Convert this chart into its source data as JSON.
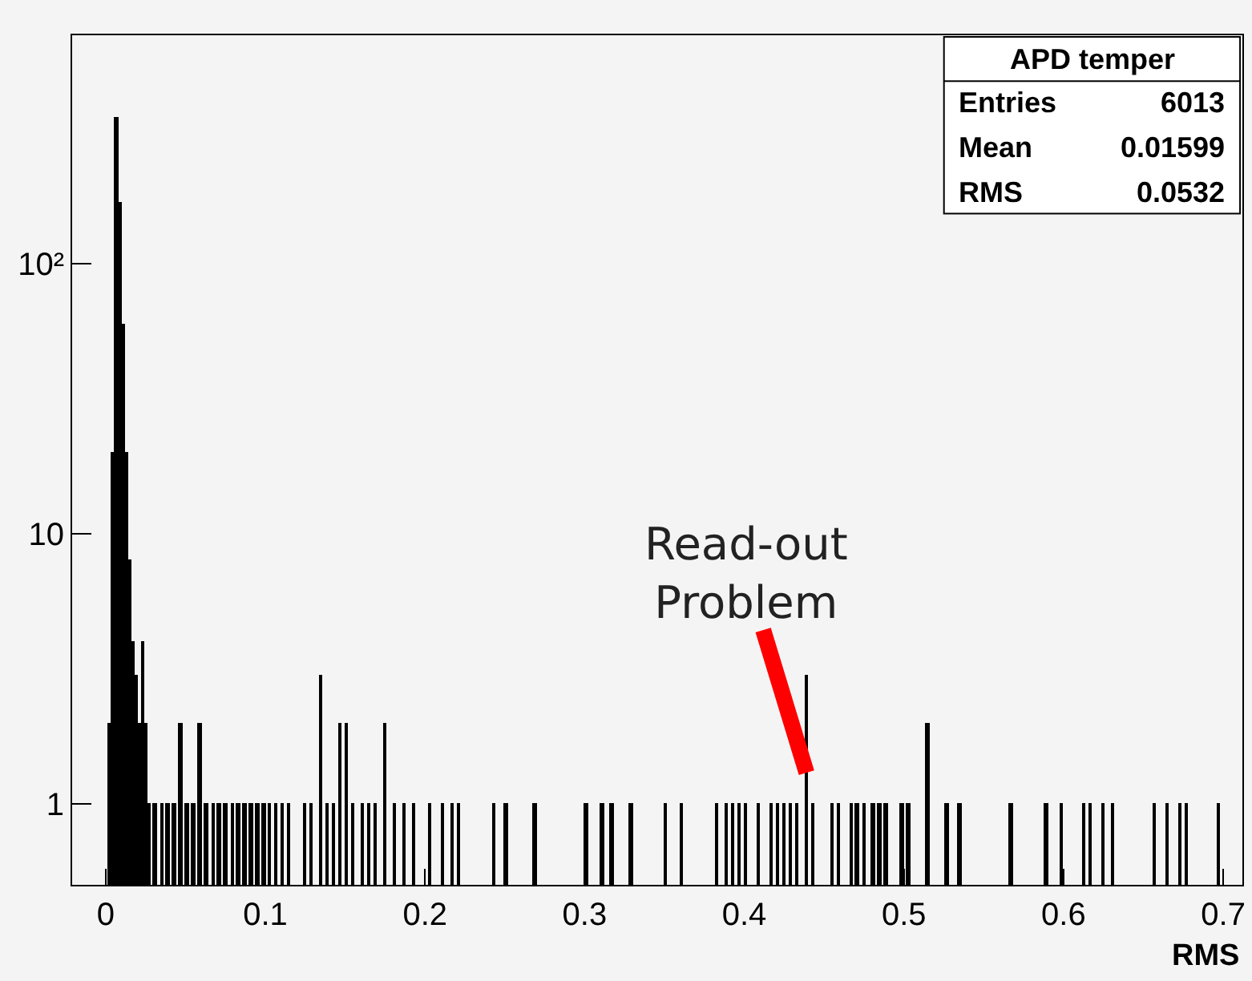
{
  "chart_data": {
    "type": "histogram",
    "xlabel": "RMS",
    "color": "#000000",
    "log": "y",
    "grid": false,
    "bins": [
      0.002,
      0.004,
      0.006,
      0.008,
      0.01,
      0.012,
      0.014,
      0.016,
      0.018,
      0.02,
      0.022,
      0.024,
      0.026,
      0.028,
      0.03,
      0.032,
      0.034,
      0.036,
      0.038,
      0.04,
      0.042,
      0.044,
      0.046,
      0.048,
      0.05,
      0.052,
      0.054,
      0.056,
      0.058,
      0.06,
      0.062,
      0.064,
      0.066,
      0.068,
      0.07,
      0.072,
      0.074,
      0.076,
      0.078,
      0.08,
      0.082,
      0.084,
      0.086,
      0.088,
      0.09,
      0.092,
      0.094,
      0.096,
      0.098,
      0.1,
      0.102,
      0.104,
      0.106,
      0.108,
      0.11,
      0.112,
      0.114,
      0.116,
      0.124,
      0.126,
      0.128,
      0.13,
      0.134,
      0.136,
      0.138,
      0.14,
      0.142,
      0.144,
      0.146,
      0.148,
      0.15,
      0.152,
      0.154,
      0.156,
      0.16,
      0.162,
      0.164,
      0.166,
      0.168,
      0.17,
      0.174,
      0.176,
      0.18,
      0.182,
      0.186,
      0.188,
      0.192,
      0.194,
      0.202,
      0.204,
      0.21,
      0.212,
      0.216,
      0.218,
      0.22,
      0.222,
      0.242,
      0.244,
      0.25,
      0.252,
      0.268,
      0.27,
      0.3,
      0.302,
      0.31,
      0.312,
      0.316,
      0.318,
      0.328,
      0.33,
      0.35,
      0.352,
      0.36,
      0.362,
      0.382,
      0.384,
      0.388,
      0.39,
      0.392,
      0.394,
      0.396,
      0.398,
      0.4,
      0.402,
      0.408,
      0.41,
      0.416,
      0.418,
      0.42,
      0.422,
      0.424,
      0.426,
      0.428,
      0.43,
      0.432,
      0.434,
      0.438,
      0.44,
      0.442,
      0.444,
      0.454,
      0.456,
      0.458,
      0.46,
      0.466,
      0.468,
      0.47,
      0.472,
      0.474,
      0.476,
      0.48,
      0.482,
      0.484,
      0.486,
      0.488,
      0.49,
      0.498,
      0.5,
      0.502,
      0.504,
      0.514,
      0.516,
      0.526,
      0.528,
      0.534,
      0.536,
      0.566,
      0.568,
      0.588,
      0.59,
      0.598,
      0.6,
      0.612,
      0.614,
      0.616,
      0.618,
      0.624,
      0.626,
      0.63,
      0.632,
      0.656,
      0.658,
      0.664,
      0.666,
      0.672,
      0.674,
      0.676,
      0.678,
      0.696,
      0.698
    ],
    "values": [
      2,
      20,
      350,
      170,
      60,
      20,
      8,
      4,
      3,
      2,
      4,
      2,
      1,
      null,
      1,
      null,
      1,
      null,
      1,
      null,
      1,
      null,
      2,
      null,
      1,
      null,
      1,
      null,
      2,
      null,
      1,
      null,
      1,
      null,
      1,
      null,
      1,
      null,
      1,
      null,
      1,
      null,
      1,
      null,
      1,
      null,
      1,
      null,
      1,
      null,
      1,
      null,
      1,
      null,
      1,
      null,
      1,
      null,
      1,
      null,
      1,
      null,
      3,
      null,
      1,
      null,
      1,
      null,
      2,
      null,
      2,
      null,
      1,
      null,
      1,
      null,
      1,
      null,
      1,
      null,
      2,
      null,
      1,
      null,
      1,
      null,
      1,
      null,
      1,
      null,
      1,
      null,
      1,
      null,
      1,
      null,
      1,
      null,
      1,
      null,
      1,
      null,
      1,
      null,
      1,
      null,
      1,
      null,
      1,
      null,
      1,
      null,
      1,
      null,
      1,
      null,
      1,
      null,
      1,
      null,
      1,
      null,
      1,
      null,
      1,
      null,
      1,
      null,
      1,
      null,
      1,
      null,
      1,
      null,
      1,
      null,
      3,
      null,
      1,
      null,
      1,
      null,
      1,
      null,
      1,
      null,
      1,
      null,
      1,
      null,
      1,
      null,
      1,
      null,
      1,
      null,
      1,
      null,
      1,
      null,
      2,
      null,
      1,
      null,
      1,
      null,
      1,
      null,
      1,
      null,
      1,
      null,
      1,
      null,
      1,
      null,
      1,
      null,
      1,
      null,
      1,
      null,
      1,
      null,
      1,
      null,
      1,
      null,
      1
    ],
    "xlim": [
      -0.021,
      0.712
    ],
    "ylim": [
      0.5,
      700
    ],
    "xticks": [
      0,
      0.1,
      0.2,
      0.3,
      0.4,
      0.5,
      0.6,
      0.7
    ],
    "yticks": [
      1,
      10,
      {
        "value": 100,
        "label": "10²"
      }
    ],
    "annotations": [
      "APD temper",
      "Entries",
      "6013",
      "Mean",
      "0.01599",
      "RMS",
      "0.0532",
      {
        "text": "Read-out\nProblem",
        "x": 0.439,
        "y": 1.3
      }
    ]
  }
}
